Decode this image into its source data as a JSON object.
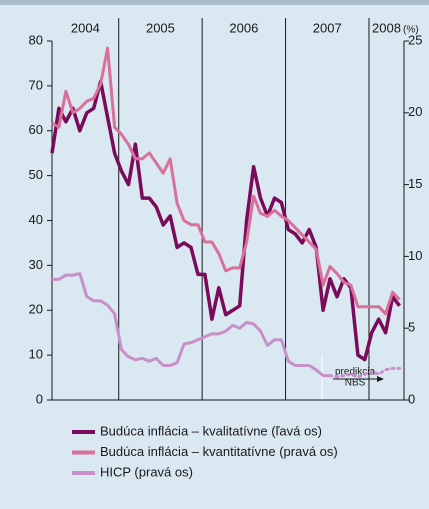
{
  "chart_data": {
    "type": "line",
    "xlim": [
      2004.2,
      2008.42
    ],
    "xticks": [
      2004,
      2005,
      2006,
      2007,
      2008
    ],
    "ylim": [
      0,
      80
    ],
    "yticks": [
      0,
      10,
      20,
      30,
      40,
      50,
      60,
      70,
      80
    ],
    "y2lim": [
      0,
      25
    ],
    "y2ticks": [
      0,
      5,
      10,
      15,
      20,
      25
    ],
    "y2label": "(%)",
    "annotation": [
      "predikcia",
      "NBS"
    ],
    "x": [
      2004.2,
      2004.283,
      2004.367,
      2004.45,
      2004.533,
      2004.617,
      2004.7,
      2004.783,
      2004.867,
      2004.95,
      2005.033,
      2005.117,
      2005.2,
      2005.283,
      2005.367,
      2005.45,
      2005.533,
      2005.617,
      2005.7,
      2005.783,
      2005.867,
      2005.95,
      2006.033,
      2006.117,
      2006.2,
      2006.283,
      2006.367,
      2006.45,
      2006.533,
      2006.617,
      2006.7,
      2006.783,
      2006.867,
      2006.95,
      2007.033,
      2007.117,
      2007.2,
      2007.283,
      2007.367,
      2007.45,
      2007.533,
      2007.617,
      2007.7,
      2007.783,
      2007.867,
      2007.95,
      2008.033,
      2008.117,
      2008.2,
      2008.283,
      2008.367
    ],
    "series": [
      {
        "name": "Budúca inflácia – kvalitatívne (ľavá os)",
        "color": "#7a0a5a",
        "width": 3.5,
        "values": [
          55,
          65,
          62,
          65,
          60,
          64,
          65,
          71,
          63,
          55,
          51,
          48,
          57,
          45,
          45,
          43,
          39,
          41,
          34,
          35,
          34,
          28,
          28,
          18,
          25,
          19,
          20,
          21,
          40,
          52,
          45,
          41,
          45,
          44,
          38,
          37,
          35,
          38,
          34,
          20,
          27,
          23,
          27,
          25,
          10,
          9,
          15,
          18,
          15,
          23,
          21
        ]
      },
      {
        "name": "Budúca inflácia – kvantitatívne (pravá os)",
        "color": "#d8709a",
        "width": 3,
        "axis": "y2",
        "values": [
          19.3,
          19,
          21.5,
          20,
          20.3,
          20.8,
          21,
          22,
          24.5,
          19,
          18.5,
          17.8,
          16.8,
          16.8,
          17.2,
          16.5,
          15.8,
          16.8,
          13.7,
          12.5,
          12.2,
          12.2,
          11,
          11,
          10.2,
          9,
          9.2,
          9.2,
          11,
          14.2,
          13,
          12.8,
          13.2,
          12.8,
          12.5,
          12,
          11.5,
          11,
          10.5,
          8,
          9.3,
          8.8,
          8.2,
          8,
          6.5,
          6.5,
          6.5,
          6.5,
          6,
          7.5,
          7
        ]
      },
      {
        "name": "HICP (pravá os)",
        "color": "#c890c8",
        "width": 3,
        "axis": "y2",
        "values": [
          8.4,
          8.4,
          8.7,
          8.7,
          8.8,
          7.2,
          6.9,
          6.9,
          6.6,
          6,
          3.5,
          3,
          2.8,
          2.9,
          2.7,
          2.9,
          2.4,
          2.4,
          2.6,
          3.9,
          4,
          4.2,
          4.4,
          4.6,
          4.6,
          4.8,
          5.2,
          5,
          5.4,
          5.3,
          4.8,
          3.8,
          4.2,
          4.2,
          2.7,
          2.4,
          2.4,
          2.4,
          2.1,
          1.7,
          1.7,
          null,
          null,
          null,
          null,
          null,
          null,
          null,
          null,
          null,
          null
        ]
      },
      {
        "color": "#c890c8",
        "width": 3,
        "axis": "y2",
        "dash": true,
        "values": [
          null,
          null,
          null,
          null,
          null,
          null,
          null,
          null,
          null,
          null,
          null,
          null,
          null,
          null,
          null,
          null,
          null,
          null,
          null,
          null,
          null,
          null,
          null,
          null,
          null,
          null,
          null,
          null,
          null,
          null,
          null,
          null,
          null,
          null,
          null,
          null,
          null,
          null,
          null,
          null,
          1.7,
          1.6,
          1.7,
          1.8,
          1.6,
          1.8,
          2,
          1.8,
          2.1,
          2.2,
          2.2
        ]
      }
    ]
  }
}
